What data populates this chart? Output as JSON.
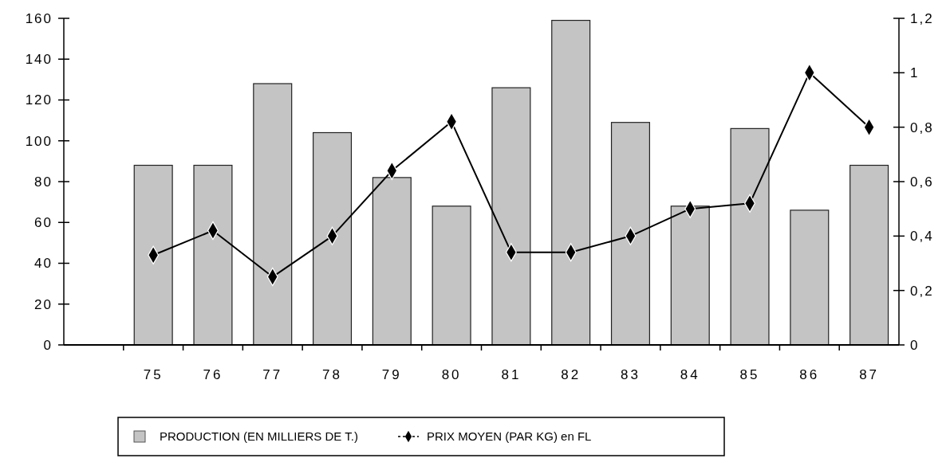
{
  "chart_data": {
    "type": "bar",
    "categories": [
      null,
      "75",
      "76",
      "77",
      "78",
      "79",
      "80",
      "81",
      "82",
      "83",
      "84",
      "85",
      "86",
      "87"
    ],
    "series": [
      {
        "name": "PRODUCTION (EN MILLIERS DE T.)",
        "color": "#c4c4c4",
        "values": [
          null,
          88,
          88,
          128,
          104,
          82,
          68,
          126,
          159,
          109,
          68,
          106,
          66,
          88
        ]
      },
      {
        "name": "PRIX MOYEN (PAR KG) en FL",
        "type": "line",
        "axis": "y2",
        "color": "#000000",
        "values": [
          null,
          0.33,
          0.42,
          0.25,
          0.4,
          0.64,
          0.82,
          0.34,
          0.34,
          0.4,
          0.5,
          0.52,
          1.0,
          0.8
        ]
      }
    ],
    "ylim": [
      0,
      160
    ],
    "yticks": [
      0,
      20,
      40,
      60,
      80,
      100,
      120,
      140,
      160
    ],
    "y2lim": [
      0,
      1.2
    ],
    "y2ticks": [
      0,
      {
        "value": 0.2,
        "label": "0,2"
      },
      {
        "value": 0.4,
        "label": "0,4"
      },
      {
        "value": 0.6,
        "label": "0,6"
      },
      {
        "value": 0.8,
        "label": "0,8"
      },
      1,
      {
        "value": 1.2,
        "label": "1,2"
      }
    ],
    "marker": "diamond",
    "legend": "bottom"
  }
}
